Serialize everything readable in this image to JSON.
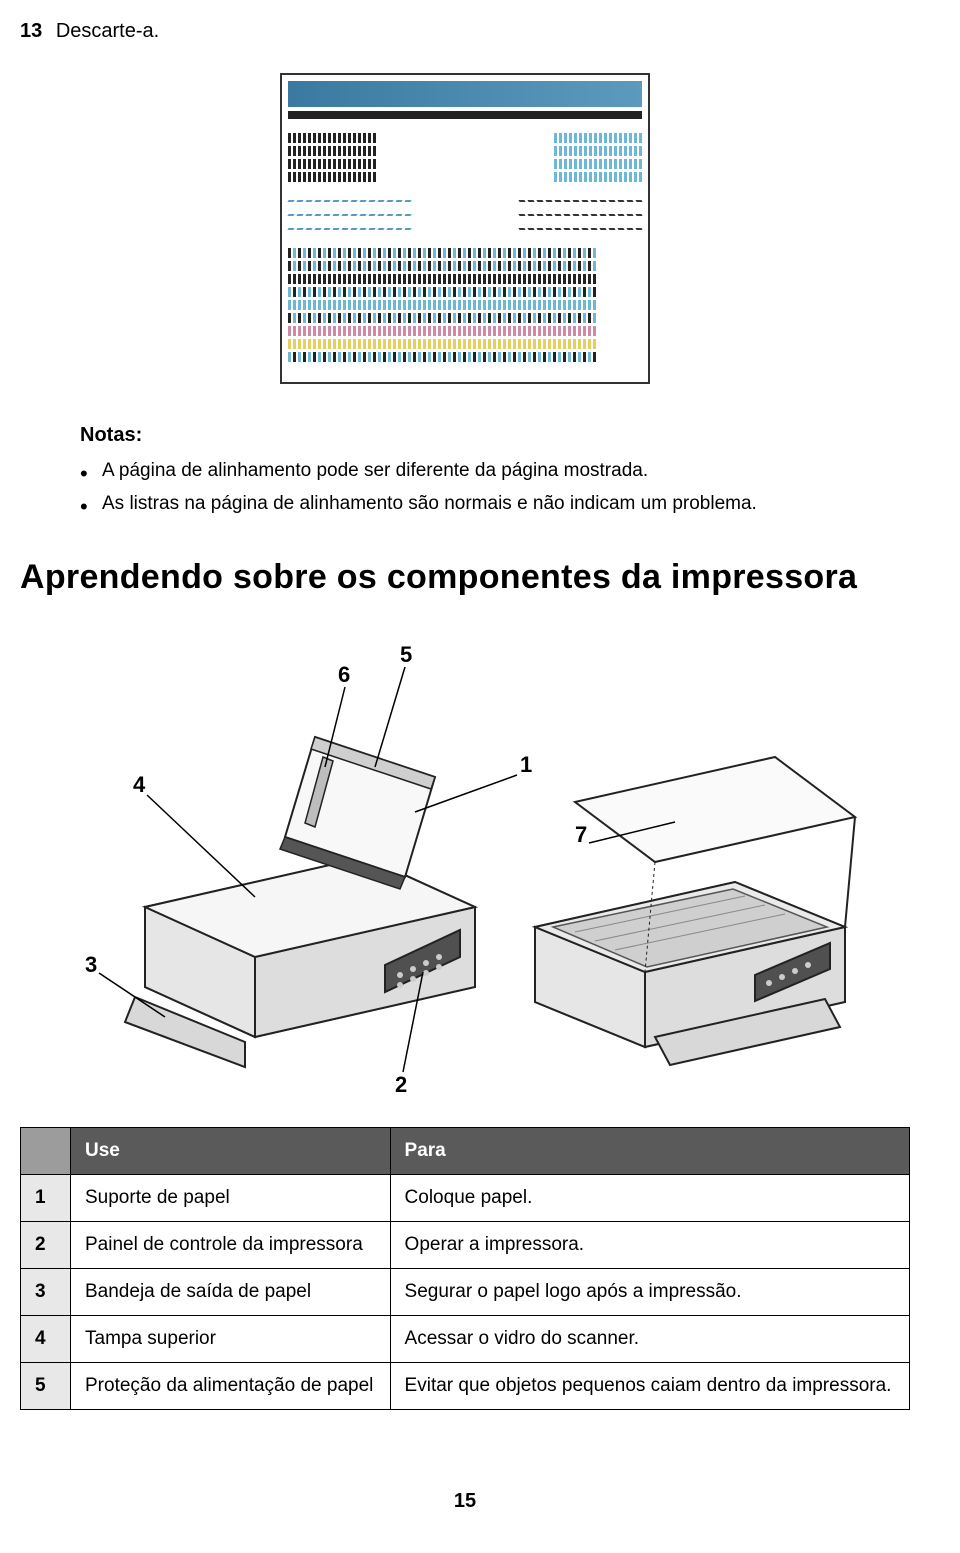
{
  "step": {
    "number": "13",
    "text": "Descarte-a."
  },
  "notes": {
    "heading": "Notas:",
    "items": [
      "A página de alinhamento pode ser diferente da página mostrada.",
      "As listras na página de alinhamento são normais e não indicam um problema."
    ]
  },
  "section_title": "Aprendendo sobre os componentes da impressora",
  "diagram": {
    "callouts": [
      "1",
      "2",
      "3",
      "4",
      "5",
      "6",
      "7"
    ],
    "colors": {
      "body": "#f3f3f3",
      "body_dark": "#dcdcdc",
      "stroke": "#222222",
      "glass": "#e8e8e8",
      "panel": "#505050",
      "label_font_size": 22
    }
  },
  "table": {
    "columns": [
      "",
      "Use",
      "Para"
    ],
    "rows": [
      [
        "1",
        "Suporte de papel",
        "Coloque papel."
      ],
      [
        "2",
        "Painel de controle da impressora",
        "Operar a impressora."
      ],
      [
        "3",
        "Bandeja de saída de papel",
        "Segurar o papel logo após a impressão."
      ],
      [
        "4",
        "Tampa superior",
        "Acessar o vidro do scanner."
      ],
      [
        "5",
        "Proteção da alimentação de papel",
        "Evitar que objetos pequenos caiam dentro da impressora."
      ]
    ]
  },
  "page_number": "15",
  "alignment_pattern": {
    "top_bar_color": "#5c9abd",
    "colors": {
      "k": "#222222",
      "c": "#6cb8d6",
      "m": "#d18aa5",
      "y": "#e5cf5f"
    },
    "block1_rows": 4,
    "block2_diag_rows": 2,
    "block3_rows": 9,
    "ticks_per_half": 18
  }
}
